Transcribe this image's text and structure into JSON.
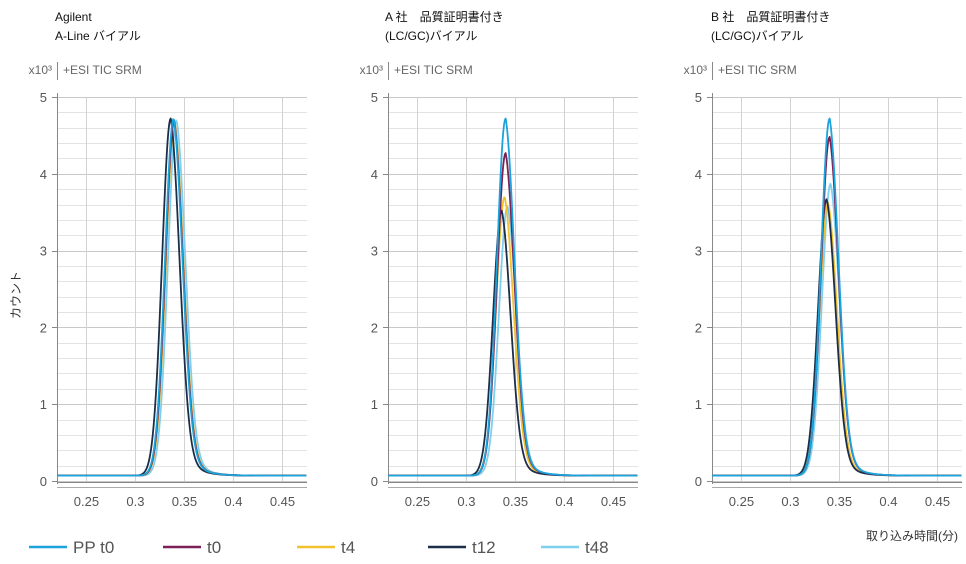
{
  "legend": [
    {
      "name": "PP t0",
      "color": "#1ba3dc"
    },
    {
      "name": "t0",
      "color": "#7b2155"
    },
    {
      "name": "t4",
      "color": "#f2c12e"
    },
    {
      "name": "t12",
      "color": "#1b2e4a"
    },
    {
      "name": "t48",
      "color": "#7fd0ee"
    }
  ],
  "xlabel": "取り込み時間(分)",
  "ylabel": "カウント",
  "chart_data": [
    {
      "type": "line",
      "title_lines": [
        "Agilent",
        "A-Line バイアル"
      ],
      "scale_label": "x10³",
      "trace_label": "+ESI TIC SRM",
      "xlim": [
        0.22,
        0.475
      ],
      "ylim": [
        0,
        5
      ],
      "xticks": [
        0.25,
        0.3,
        0.35,
        0.4,
        0.45
      ],
      "xtick_labels": [
        "0.25",
        "0.3",
        "0.35",
        "0.4",
        "0.45"
      ],
      "yticks": [
        0,
        1,
        2,
        3,
        4,
        5
      ],
      "baseline": 0.07,
      "series": [
        {
          "name": "PP t0",
          "peak": 4.72,
          "center": 0.339
        },
        {
          "name": "t0",
          "peak": 4.7,
          "center": 0.3395
        },
        {
          "name": "t4",
          "peak": 4.68,
          "center": 0.34
        },
        {
          "name": "t12",
          "peak": 4.72,
          "center": 0.336
        },
        {
          "name": "t48",
          "peak": 4.7,
          "center": 0.342
        }
      ]
    },
    {
      "type": "line",
      "title_lines": [
        "A 社　品質証明書付き",
        "(LC/GC)バイアル"
      ],
      "scale_label": "x10³",
      "trace_label": "+ESI TIC SRM",
      "xlim": [
        0.22,
        0.475
      ],
      "ylim": [
        0,
        5
      ],
      "xticks": [
        0.25,
        0.3,
        0.35,
        0.4,
        0.45
      ],
      "xtick_labels": [
        "0.25",
        "0.3",
        "0.35",
        "0.4",
        "0.45"
      ],
      "yticks": [
        0,
        1,
        2,
        3,
        4,
        5
      ],
      "baseline": 0.07,
      "series": [
        {
          "name": "PP t0",
          "peak": 4.72,
          "center": 0.34
        },
        {
          "name": "t0",
          "peak": 4.27,
          "center": 0.34
        },
        {
          "name": "t4",
          "peak": 3.7,
          "center": 0.339
        },
        {
          "name": "t12",
          "peak": 3.52,
          "center": 0.336
        },
        {
          "name": "t48",
          "peak": 3.58,
          "center": 0.342
        }
      ]
    },
    {
      "type": "line",
      "title_lines": [
        "B 社　品質証明書付き",
        "(LC/GC)バイアル"
      ],
      "scale_label": "x10³",
      "trace_label": "+ESI TIC SRM",
      "xlim": [
        0.22,
        0.475
      ],
      "ylim": [
        0,
        5
      ],
      "xticks": [
        0.25,
        0.3,
        0.35,
        0.4,
        0.45
      ],
      "xtick_labels": [
        "0.25",
        "0.3",
        "0.35",
        "0.4",
        "0.45"
      ],
      "yticks": [
        0,
        1,
        2,
        3,
        4,
        5
      ],
      "baseline": 0.07,
      "series": [
        {
          "name": "PP t0",
          "peak": 4.72,
          "center": 0.34
        },
        {
          "name": "t0",
          "peak": 4.48,
          "center": 0.34
        },
        {
          "name": "t4",
          "peak": 3.62,
          "center": 0.3385
        },
        {
          "name": "t12",
          "peak": 3.67,
          "center": 0.337
        },
        {
          "name": "t48",
          "peak": 3.87,
          "center": 0.341
        }
      ]
    }
  ]
}
